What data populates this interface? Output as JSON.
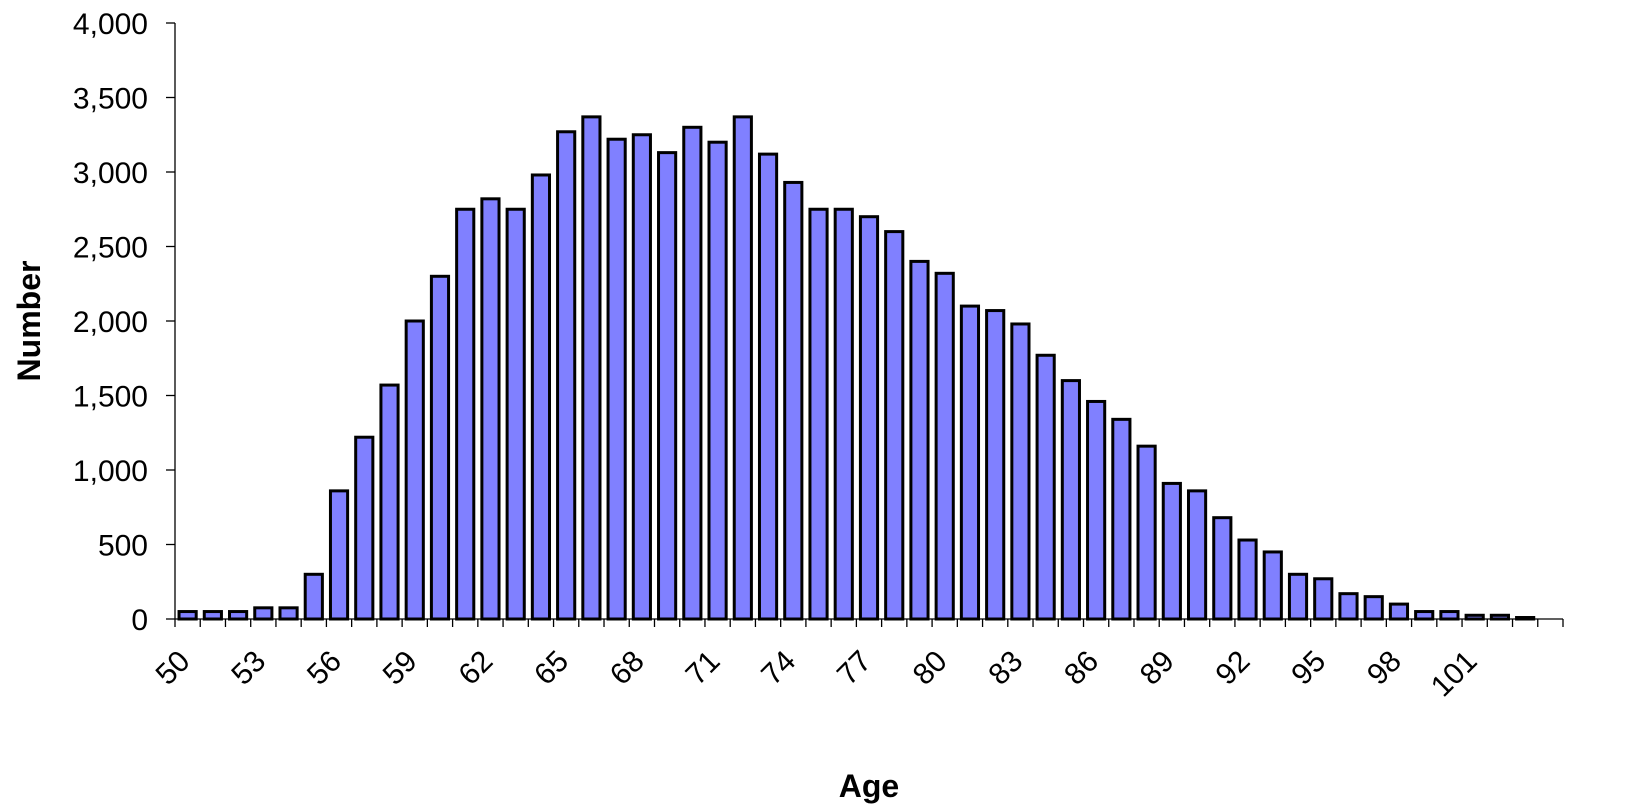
{
  "chart_data": {
    "type": "bar",
    "xlabel": "Age",
    "ylabel": "Number",
    "ylim": [
      0,
      4000
    ],
    "yticks": [
      {
        "value": 0,
        "label": "0"
      },
      {
        "value": 500,
        "label": "500"
      },
      {
        "value": 1000,
        "label": "1,000"
      },
      {
        "value": 1500,
        "label": "1,500"
      },
      {
        "value": 2000,
        "label": "2,000"
      },
      {
        "value": 2500,
        "label": "2,500"
      },
      {
        "value": 3000,
        "label": "3,000"
      },
      {
        "value": 3500,
        "label": "3,500"
      },
      {
        "value": 4000,
        "label": "4,000"
      }
    ],
    "categories": [
      50,
      51,
      52,
      53,
      54,
      55,
      56,
      57,
      58,
      59,
      60,
      61,
      62,
      63,
      64,
      65,
      66,
      67,
      68,
      69,
      70,
      71,
      72,
      73,
      74,
      75,
      76,
      77,
      78,
      79,
      80,
      81,
      82,
      83,
      84,
      85,
      86,
      87,
      88,
      89,
      90,
      91,
      92,
      93,
      94,
      95,
      96,
      97,
      98,
      99,
      100,
      101,
      102,
      103,
      104
    ],
    "xtick_labels": [
      "50",
      "53",
      "56",
      "59",
      "62",
      "65",
      "68",
      "71",
      "74",
      "77",
      "80",
      "83",
      "86",
      "89",
      "92",
      "95",
      "98",
      "101"
    ],
    "values": [
      50,
      50,
      50,
      75,
      75,
      300,
      860,
      1220,
      1570,
      2000,
      2300,
      2750,
      2820,
      2750,
      2980,
      3270,
      3370,
      3220,
      3250,
      3130,
      3300,
      3200,
      3370,
      3120,
      2930,
      2750,
      2750,
      2700,
      2600,
      2400,
      2320,
      2100,
      2070,
      1980,
      1770,
      1600,
      1460,
      1340,
      1160,
      910,
      860,
      680,
      530,
      450,
      300,
      270,
      170,
      150,
      100,
      50,
      50,
      25,
      25,
      10,
      0
    ],
    "grid": false,
    "legend": "none",
    "bar_color": "#8080ff",
    "edge_color": "#000000"
  }
}
